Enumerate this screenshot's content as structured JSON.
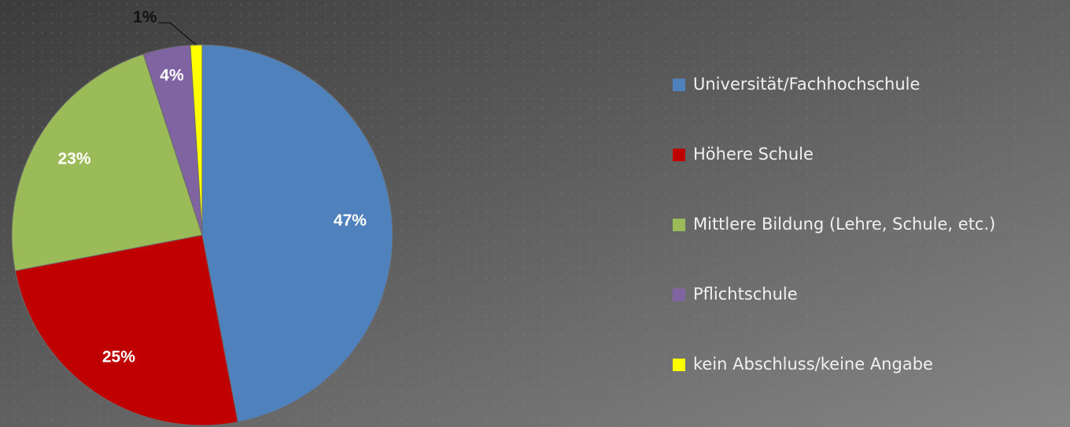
{
  "chart_data": {
    "type": "pie",
    "categories": [
      "Universität/Fachhochschule",
      "Höhere Schule",
      "Mittlere Bildung (Lehre, Schule, etc.)",
      "Pflichtschule",
      "kein Abschluss/keine Angabe"
    ],
    "values": [
      47,
      25,
      23,
      4,
      1
    ],
    "value_labels": [
      "47%",
      "25%",
      "23%",
      "4%",
      "1%"
    ],
    "colors": [
      "#4f81bd",
      "#c00000",
      "#9bbb59",
      "#8064a2",
      "#ffff00"
    ],
    "legend": "right"
  }
}
